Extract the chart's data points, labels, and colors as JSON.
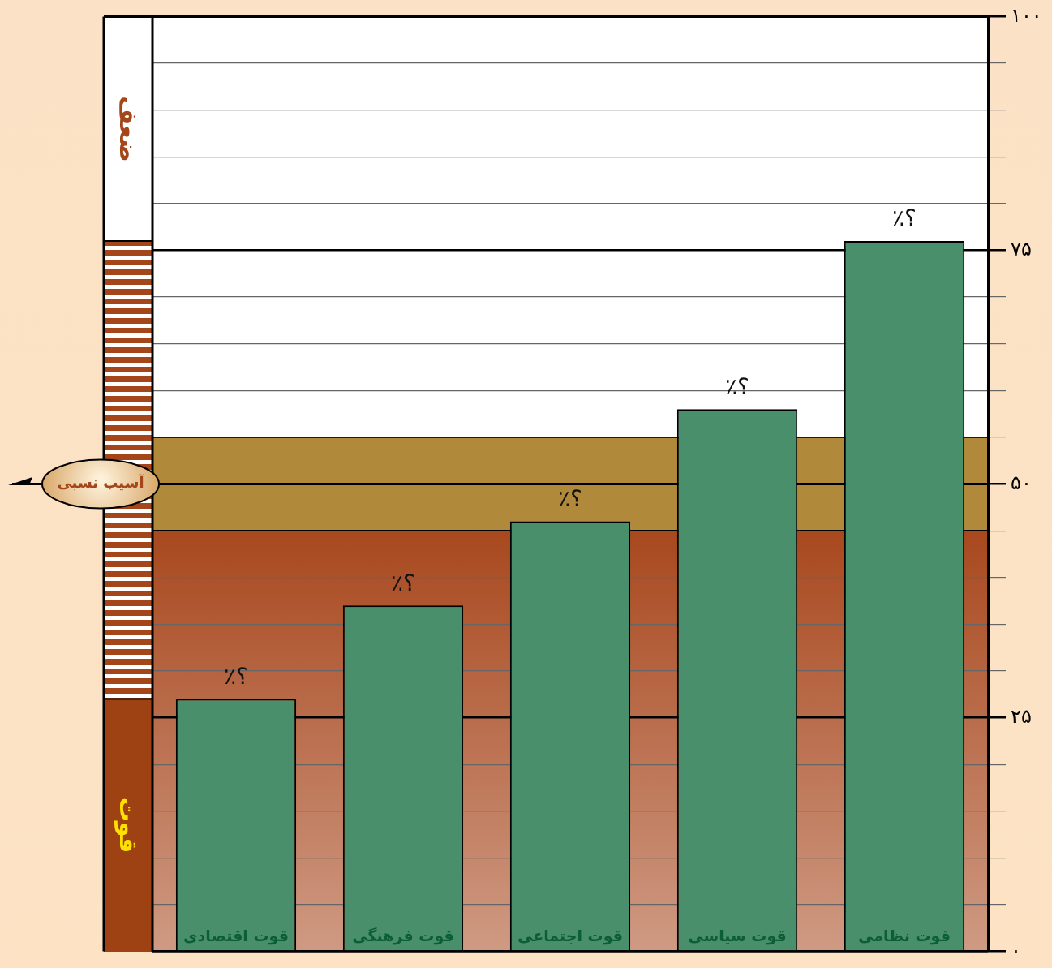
{
  "chart_data": {
    "type": "bar",
    "categories": [
      "قوت اقتصادی",
      "قوت فرهنگی",
      "قوت اجتماعی",
      "قوت سیاسی",
      "قوت نظامی"
    ],
    "values": [
      27,
      37,
      46,
      58,
      76
    ],
    "color": "#4a8f6c",
    "value_labels": [
      "؟٪",
      "؟٪",
      "؟٪",
      "؟٪",
      "؟٪"
    ],
    "ylim": [
      0,
      100
    ],
    "yticks": [
      {
        "value": 0,
        "label": "۰"
      },
      {
        "value": 5,
        "label": null
      },
      {
        "value": 10,
        "label": null
      },
      {
        "value": 15,
        "label": null
      },
      {
        "value": 20,
        "label": null
      },
      {
        "value": 25,
        "label": "۲۵"
      },
      {
        "value": 30,
        "label": null
      },
      {
        "value": 35,
        "label": null
      },
      {
        "value": 40,
        "label": null
      },
      {
        "value": 45,
        "label": null
      },
      {
        "value": 50,
        "label": "۵۰"
      },
      {
        "value": 55,
        "label": null
      },
      {
        "value": 60,
        "label": null
      },
      {
        "value": 65,
        "label": null
      },
      {
        "value": 70,
        "label": null
      },
      {
        "value": 75,
        "label": "۷۵"
      },
      {
        "value": 80,
        "label": null
      },
      {
        "value": 85,
        "label": null
      },
      {
        "value": 90,
        "label": null
      },
      {
        "value": 95,
        "label": null
      },
      {
        "value": 100,
        "label": "۱۰۰"
      }
    ],
    "grid": "y",
    "legend": false,
    "bands": [
      {
        "axis": "y",
        "from": 0,
        "to": 45,
        "color": "#a8481e"
      },
      {
        "axis": "y",
        "from": 45,
        "to": 55,
        "color": "#b08a3a"
      }
    ],
    "annotations": [
      "ضعف",
      "قوت"
    ],
    "ref_lines": [
      {
        "axis": "y",
        "value": 50,
        "label": "آسیب نسبی",
        "color": "#000000"
      }
    ]
  }
}
